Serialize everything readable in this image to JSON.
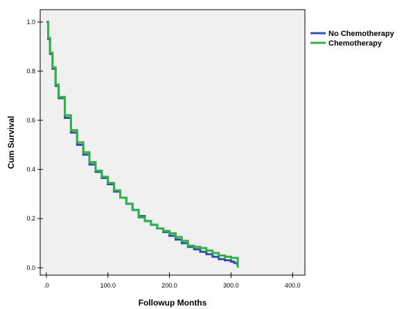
{
  "chart_data": {
    "type": "line",
    "step": true,
    "title": "",
    "xlabel": "Followup Months",
    "ylabel": "Cum Survival",
    "xlim": [
      -10,
      420
    ],
    "ylim": [
      -0.03,
      1.05
    ],
    "x_ticks": [
      0,
      100,
      200,
      300,
      400
    ],
    "x_tick_labels": [
      ".0",
      "100.0",
      "200.0",
      "300.0",
      "400.0"
    ],
    "y_ticks": [
      0,
      0.2,
      0.4,
      0.6,
      0.8,
      1.0
    ],
    "y_tick_labels": [
      "0.0",
      "0.2",
      "0.4",
      "0.6",
      "0.8",
      "1.0"
    ],
    "grid": false,
    "plot_background": "#f0f0f0",
    "legend_position": "right",
    "series": [
      {
        "name": "No Chemotherapy",
        "color": "#3b4ba8",
        "x": [
          0,
          3,
          6,
          10,
          15,
          20,
          30,
          40,
          50,
          60,
          70,
          80,
          90,
          100,
          110,
          120,
          130,
          140,
          150,
          160,
          170,
          180,
          190,
          200,
          210,
          220,
          230,
          240,
          250,
          260,
          270,
          280,
          290,
          300,
          305,
          310
        ],
        "y": [
          1.0,
          0.93,
          0.87,
          0.81,
          0.74,
          0.69,
          0.61,
          0.55,
          0.5,
          0.46,
          0.42,
          0.39,
          0.365,
          0.34,
          0.31,
          0.285,
          0.26,
          0.235,
          0.21,
          0.19,
          0.175,
          0.16,
          0.145,
          0.13,
          0.115,
          0.1,
          0.085,
          0.075,
          0.065,
          0.055,
          0.045,
          0.035,
          0.03,
          0.025,
          0.02,
          0.01
        ]
      },
      {
        "name": "Chemotherapy",
        "color": "#2db34a",
        "x": [
          0,
          3,
          6,
          10,
          15,
          20,
          30,
          40,
          50,
          60,
          70,
          80,
          90,
          100,
          110,
          120,
          130,
          140,
          150,
          160,
          170,
          180,
          190,
          200,
          210,
          220,
          230,
          240,
          250,
          260,
          270,
          280,
          290,
          300,
          311
        ],
        "y": [
          1.0,
          0.935,
          0.875,
          0.815,
          0.745,
          0.695,
          0.62,
          0.56,
          0.51,
          0.47,
          0.43,
          0.395,
          0.37,
          0.345,
          0.315,
          0.285,
          0.26,
          0.235,
          0.205,
          0.19,
          0.175,
          0.16,
          0.15,
          0.14,
          0.125,
          0.11,
          0.09,
          0.085,
          0.08,
          0.07,
          0.06,
          0.05,
          0.045,
          0.04,
          0.0
        ]
      }
    ]
  }
}
